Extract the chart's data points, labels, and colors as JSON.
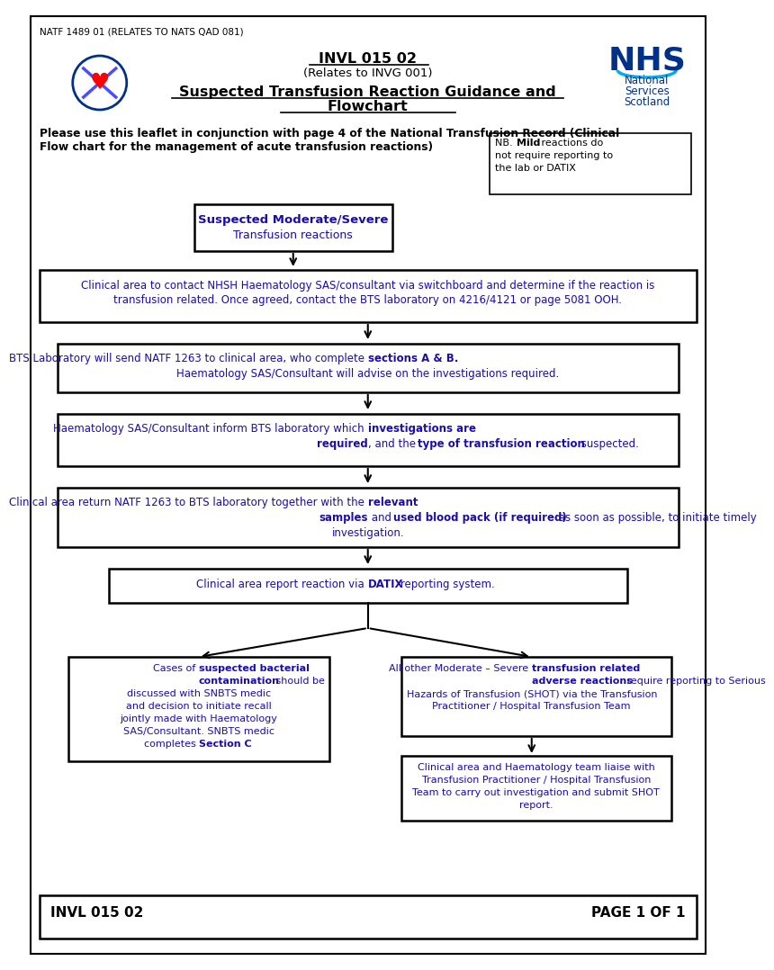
{
  "page_ref": "NATF 1489 01 (RELATES TO NATS QAD 081)",
  "title_center_line1": "INVL 015 02",
  "title_center_line2": "(Relates to INVG 001)",
  "title_main_line1": "Suspected Transfusion Reaction Guidance and",
  "title_main_line2": "Flowchart",
  "intro_text_line1": "Please use this leaflet in conjunction with page 4 of the National Transfusion Record (Clinical",
  "intro_text_line2": "Flow chart for the management of acute transfusion reactions)",
  "nb_line1": "NB. ",
  "nb_bold": "Mild",
  "nb_line1_end": " reactions do",
  "nb_line2": "not require reporting to",
  "nb_line3": "the lab or DATIX",
  "box1_bold": "Suspected Moderate/Severe",
  "box1_normal": "Transfusion reactions",
  "box2_line1": "Clinical area to contact NHSH Haematology SAS/consultant via switchboard and determine if the reaction is",
  "box2_line2": "transfusion related. Once agreed, contact the BTS laboratory on 4216/4121 or page 5081 OOH.",
  "box3_pre": "BTS Laboratory will send NATF 1263 to clinical area, who complete ",
  "box3_bold": "sections A & B.",
  "box3_line2": "Haematology SAS/Consultant will advise on the investigations required.",
  "box4_pre": "Haematology SAS/Consultant inform BTS laboratory which ",
  "box4_bold1": "investigations are",
  "box4_line2_bold": "required",
  "box4_line2_mid": ", and the ",
  "box4_bold2": "type of transfusion reaction",
  "box4_end": " suspected.",
  "box5_pre": "Clinical area return NATF 1263 to BTS laboratory together with the ",
  "box5_bold1": "relevant",
  "box5_line2_bold": "samples",
  "box5_line2_mid": " and ",
  "box5_bold2": "used blood pack (if required)",
  "box5_line3": "investigation.",
  "box5_line2_end": " as soon as possible, to initiate timely",
  "box6_pre": "Clinical area report reaction via ",
  "box6_bold": "DATIX",
  "box6_post": " reporting system.",
  "box7_pre": "Cases of ",
  "box7_bold1": "suspected bacterial",
  "box7_line2_bold": "contamination",
  "box7_line2_end": " should be",
  "box7_line3": "discussed with SNBTS medic",
  "box7_line4": "and decision to initiate recall",
  "box7_line5": "jointly made with Haematology",
  "box7_line6": "SAS/Consultant. SNBTS medic",
  "box7_pre_bold2": "completes ",
  "box7_bold2": "Section C",
  "box8_pre": "All other Moderate – Severe ",
  "box8_bold1": "transfusion related",
  "box8_line2_bold": "adverse reactions",
  "box8_line2_end": " require reporting to Serious",
  "box8_line3": "Hazards of Transfusion (SHOT) via the Transfusion",
  "box8_line4": "Practitioner / Hospital Transfusion Team",
  "box9_line1": "Clinical area and Haematology team liaise with",
  "box9_line2": "Transfusion Practitioner / Hospital Transfusion",
  "box9_line3": "Team to carry out investigation and submit SHOT",
  "box9_line4": "report.",
  "footer_left": "INVL 015 02",
  "footer_right": "PAGE 1 OF 1",
  "text_color": "#1a0dab",
  "border_color": "#000000",
  "bg_color": "#ffffff",
  "nhs_blue": "#003087",
  "nhs_light_blue": "#00AEEF"
}
